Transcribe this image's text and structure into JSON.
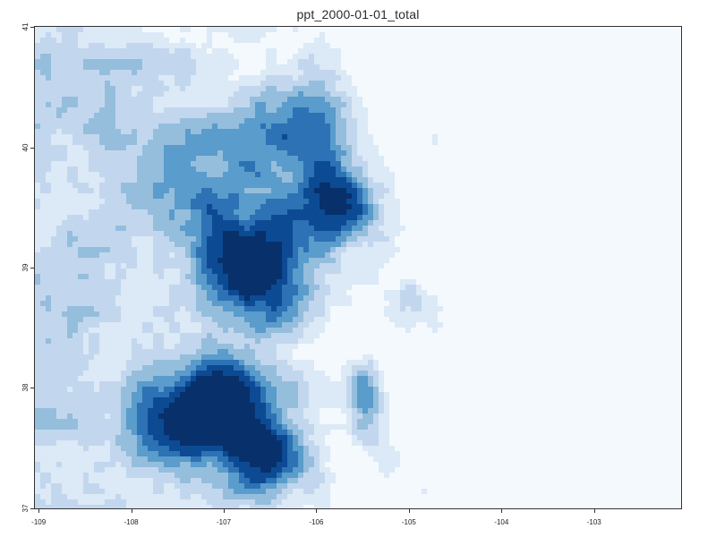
{
  "title": "ppt_2000-01-01_total",
  "x_ticks": [
    "-109",
    "-108",
    "-107",
    "-106",
    "-105",
    "-104",
    "-103"
  ],
  "y_ticks": [
    "41",
    "40",
    "39",
    "38",
    "37"
  ],
  "palette": [
    "#f4f9fe",
    "#dce9f6",
    "#c2d7ee",
    "#95bedd",
    "#5a9ccb",
    "#2d72b4",
    "#0d4a94",
    "#08306b"
  ],
  "extent": {
    "lon": [
      -109.05,
      -102.05
    ],
    "lat": [
      36.99,
      41.01
    ]
  }
}
